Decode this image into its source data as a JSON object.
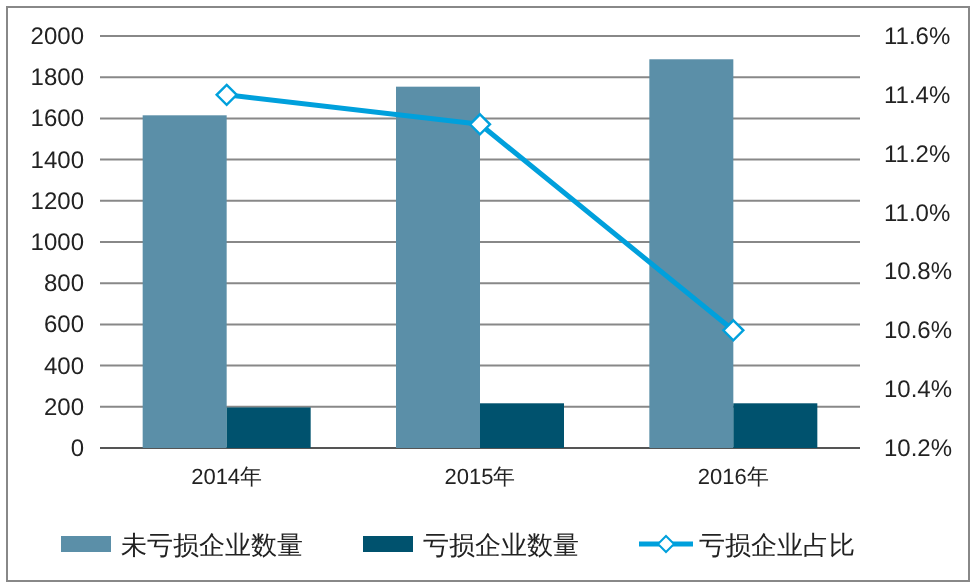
{
  "chart_data": {
    "type": "bar",
    "categories": [
      "2014年",
      "2015年",
      "2016年"
    ],
    "series": [
      {
        "name": "未亏损企业数量",
        "color": "#5b8fa8",
        "values": [
          1615,
          1754,
          1887
        ]
      },
      {
        "name": "亏损企业数量",
        "color": "#00526e",
        "values": [
          197,
          217,
          217
        ]
      },
      {
        "name": "亏损企业占比",
        "type": "line",
        "axis": "y2",
        "color": "#00a0dc",
        "marker": "diamond",
        "values": [
          11.4,
          11.3,
          10.6
        ]
      }
    ],
    "ylim": [
      0,
      2000
    ],
    "yticks": [
      0,
      200,
      400,
      600,
      800,
      1000,
      1200,
      1400,
      1600,
      1800,
      2000
    ],
    "y2lim": [
      10.2,
      11.6
    ],
    "y2ticks": [
      {
        "value": 10.2,
        "label": "10.2%"
      },
      {
        "value": 10.4,
        "label": "10.4%"
      },
      {
        "value": 10.6,
        "label": "10.6%"
      },
      {
        "value": 10.8,
        "label": "10.8%"
      },
      {
        "value": 11.0,
        "label": "11.0%"
      },
      {
        "value": 11.2,
        "label": "11.2%"
      },
      {
        "value": 11.4,
        "label": "11.4%"
      },
      {
        "value": 11.6,
        "label": "11.6%"
      }
    ],
    "grid": "y",
    "legend": "bottom"
  }
}
